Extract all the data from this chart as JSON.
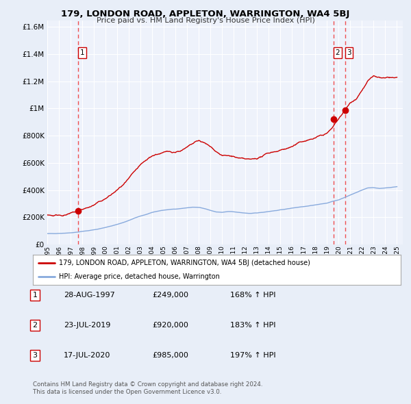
{
  "title": "179, LONDON ROAD, APPLETON, WARRINGTON, WA4 5BJ",
  "subtitle": "Price paid vs. HM Land Registry's House Price Index (HPI)",
  "sale_dates": [
    "28-AUG-1997",
    "23-JUL-2019",
    "17-JUL-2020"
  ],
  "sale_prices": [
    249000,
    920000,
    985000
  ],
  "sale_years": [
    1997.65,
    2019.55,
    2020.54
  ],
  "sale_hpi_pcts": [
    "168% ↑ HPI",
    "183% ↑ HPI",
    "197% ↑ HPI"
  ],
  "legend_property": "179, LONDON ROAD, APPLETON, WARRINGTON, WA4 5BJ (detached house)",
  "legend_hpi": "HPI: Average price, detached house, Warrington",
  "footer1": "Contains HM Land Registry data © Crown copyright and database right 2024.",
  "footer2": "This data is licensed under the Open Government Licence v3.0.",
  "xlim": [
    1995.0,
    2025.5
  ],
  "ylim": [
    0,
    1650000
  ],
  "yticks": [
    0,
    200000,
    400000,
    600000,
    800000,
    1000000,
    1200000,
    1400000,
    1600000
  ],
  "ytick_labels": [
    "£0",
    "£200K",
    "£400K",
    "£600K",
    "£800K",
    "£1M",
    "£1.2M",
    "£1.4M",
    "£1.6M"
  ],
  "xticks": [
    1995,
    1996,
    1997,
    1998,
    1999,
    2000,
    2001,
    2002,
    2003,
    2004,
    2005,
    2006,
    2007,
    2008,
    2009,
    2010,
    2011,
    2012,
    2013,
    2014,
    2015,
    2016,
    2017,
    2018,
    2019,
    2020,
    2021,
    2022,
    2023,
    2024,
    2025
  ],
  "property_line_color": "#cc0000",
  "hpi_line_color": "#88aadd",
  "vline_color": "#ee3333",
  "dot_color": "#cc0000",
  "bg_color": "#e8eef8",
  "plot_bg": "#eef2fb",
  "grid_color": "#ffffff",
  "box_color": "#cc0000",
  "hpi_points": [
    [
      1995.0,
      80000
    ],
    [
      1995.5,
      79000
    ],
    [
      1996.0,
      82000
    ],
    [
      1996.5,
      84000
    ],
    [
      1997.0,
      88000
    ],
    [
      1997.5,
      92000
    ],
    [
      1998.0,
      98000
    ],
    [
      1998.5,
      103000
    ],
    [
      1999.0,
      110000
    ],
    [
      1999.5,
      118000
    ],
    [
      2000.0,
      127000
    ],
    [
      2000.5,
      138000
    ],
    [
      2001.0,
      150000
    ],
    [
      2001.5,
      163000
    ],
    [
      2002.0,
      178000
    ],
    [
      2002.5,
      195000
    ],
    [
      2003.0,
      210000
    ],
    [
      2003.5,
      222000
    ],
    [
      2004.0,
      235000
    ],
    [
      2004.5,
      245000
    ],
    [
      2005.0,
      252000
    ],
    [
      2005.5,
      257000
    ],
    [
      2006.0,
      260000
    ],
    [
      2006.5,
      265000
    ],
    [
      2007.0,
      270000
    ],
    [
      2007.5,
      274000
    ],
    [
      2008.0,
      272000
    ],
    [
      2008.5,
      262000
    ],
    [
      2009.0,
      248000
    ],
    [
      2009.5,
      238000
    ],
    [
      2010.0,
      235000
    ],
    [
      2010.5,
      240000
    ],
    [
      2011.0,
      238000
    ],
    [
      2011.5,
      232000
    ],
    [
      2012.0,
      228000
    ],
    [
      2012.5,
      225000
    ],
    [
      2013.0,
      228000
    ],
    [
      2013.5,
      233000
    ],
    [
      2014.0,
      240000
    ],
    [
      2014.5,
      246000
    ],
    [
      2015.0,
      252000
    ],
    [
      2015.5,
      258000
    ],
    [
      2016.0,
      265000
    ],
    [
      2016.5,
      272000
    ],
    [
      2017.0,
      278000
    ],
    [
      2017.5,
      285000
    ],
    [
      2018.0,
      292000
    ],
    [
      2018.5,
      298000
    ],
    [
      2019.0,
      305000
    ],
    [
      2019.5,
      318000
    ],
    [
      2020.0,
      328000
    ],
    [
      2020.5,
      345000
    ],
    [
      2021.0,
      362000
    ],
    [
      2021.5,
      380000
    ],
    [
      2022.0,
      400000
    ],
    [
      2022.5,
      415000
    ],
    [
      2023.0,
      418000
    ],
    [
      2023.5,
      412000
    ],
    [
      2024.0,
      415000
    ],
    [
      2024.5,
      420000
    ],
    [
      2025.0,
      425000
    ]
  ],
  "prop_points": [
    [
      1995.0,
      218000
    ],
    [
      1995.5,
      216000
    ],
    [
      1996.0,
      222000
    ],
    [
      1996.5,
      228000
    ],
    [
      1997.0,
      238000
    ],
    [
      1997.5,
      249000
    ],
    [
      1998.0,
      265000
    ],
    [
      1998.5,
      280000
    ],
    [
      1999.0,
      298000
    ],
    [
      1999.5,
      320000
    ],
    [
      2000.0,
      344000
    ],
    [
      2000.5,
      374000
    ],
    [
      2001.0,
      407000
    ],
    [
      2001.5,
      443000
    ],
    [
      2002.0,
      483000
    ],
    [
      2002.5,
      528000
    ],
    [
      2003.0,
      570000
    ],
    [
      2003.5,
      603000
    ],
    [
      2004.0,
      638000
    ],
    [
      2004.5,
      655000
    ],
    [
      2005.0,
      665000
    ],
    [
      2005.5,
      668000
    ],
    [
      2006.0,
      672000
    ],
    [
      2006.5,
      688000
    ],
    [
      2007.0,
      708000
    ],
    [
      2007.5,
      730000
    ],
    [
      2008.0,
      750000
    ],
    [
      2008.5,
      730000
    ],
    [
      2009.0,
      700000
    ],
    [
      2009.5,
      670000
    ],
    [
      2010.0,
      645000
    ],
    [
      2010.5,
      640000
    ],
    [
      2011.0,
      635000
    ],
    [
      2011.5,
      618000
    ],
    [
      2012.0,
      608000
    ],
    [
      2012.5,
      600000
    ],
    [
      2013.0,
      612000
    ],
    [
      2013.5,
      630000
    ],
    [
      2014.0,
      650000
    ],
    [
      2014.5,
      665000
    ],
    [
      2015.0,
      680000
    ],
    [
      2015.5,
      695000
    ],
    [
      2016.0,
      710000
    ],
    [
      2016.5,
      730000
    ],
    [
      2017.0,
      748000
    ],
    [
      2017.5,
      762000
    ],
    [
      2018.0,
      778000
    ],
    [
      2018.5,
      795000
    ],
    [
      2019.0,
      812000
    ],
    [
      2019.5,
      858000
    ],
    [
      2020.0,
      920000
    ],
    [
      2020.5,
      985000
    ],
    [
      2021.0,
      1040000
    ],
    [
      2021.5,
      1080000
    ],
    [
      2022.0,
      1150000
    ],
    [
      2022.5,
      1220000
    ],
    [
      2023.0,
      1250000
    ],
    [
      2023.5,
      1240000
    ],
    [
      2024.0,
      1230000
    ],
    [
      2024.5,
      1235000
    ],
    [
      2025.0,
      1230000
    ]
  ]
}
